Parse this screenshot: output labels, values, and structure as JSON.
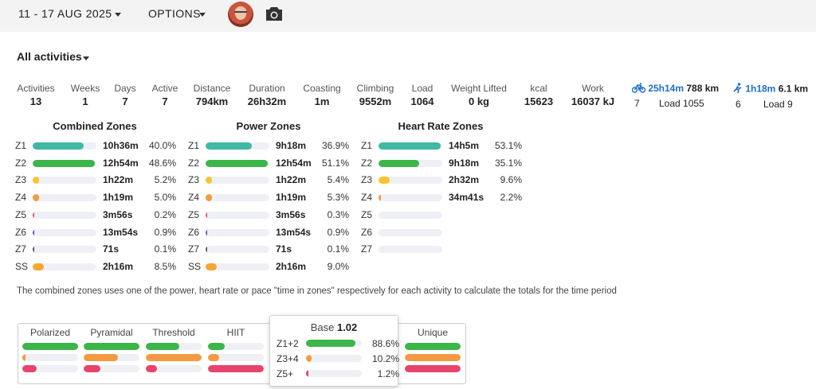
{
  "header": {
    "date_range": "11 - 17 AUG 2025",
    "options_label": "OPTIONS",
    "avatar_icon": "user-avatar",
    "camera_icon": "camera-icon"
  },
  "filter": {
    "label": "All activities"
  },
  "stats": [
    {
      "label": "Activities",
      "value": "13"
    },
    {
      "label": "Weeks",
      "value": "1"
    },
    {
      "label": "Days",
      "value": "7"
    },
    {
      "label": "Active",
      "value": "7"
    },
    {
      "label": "Distance",
      "value": "794km"
    },
    {
      "label": "Duration",
      "value": "26h32m"
    },
    {
      "label": "Coasting",
      "value": "1m"
    },
    {
      "label": "Climbing",
      "value": "9552m"
    },
    {
      "label": "Load",
      "value": "1064"
    },
    {
      "label": "Weight Lifted",
      "value": "0 kg"
    },
    {
      "label": "kcal",
      "value": "15623"
    },
    {
      "label": "Work",
      "value": "16037 kJ"
    }
  ],
  "sports": [
    {
      "icon": "bike-icon",
      "time": "25h14m",
      "distance": "788 km",
      "count": "7",
      "load": "Load 1055"
    },
    {
      "icon": "run-icon",
      "time": "1h18m",
      "distance": "6.1 km",
      "count": "6",
      "load": "Load 9"
    }
  ],
  "zones": {
    "colors": {
      "Z1": "#3fb8a4",
      "Z2": "#3cb54a",
      "Z3": "#f8c42e",
      "Z4": "#f59a43",
      "Z5": "#ef4f6b",
      "Z6": "#6a4fd6",
      "Z7": "#555555",
      "SS": "#f5a733"
    },
    "combined": {
      "title": "Combined Zones",
      "rows": [
        {
          "zone": "Z1",
          "time": "10h36m",
          "pct": "40.0%",
          "frac": 0.8
        },
        {
          "zone": "Z2",
          "time": "12h54m",
          "pct": "48.6%",
          "frac": 0.98
        },
        {
          "zone": "Z3",
          "time": "1h22m",
          "pct": "5.2%",
          "frac": 0.1
        },
        {
          "zone": "Z4",
          "time": "1h19m",
          "pct": "5.0%",
          "frac": 0.1
        },
        {
          "zone": "Z5",
          "time": "3m56s",
          "pct": "0.2%",
          "frac": 0.01
        },
        {
          "zone": "Z6",
          "time": "13m54s",
          "pct": "0.9%",
          "frac": 0.02
        },
        {
          "zone": "Z7",
          "time": "71s",
          "pct": "0.1%",
          "frac": 0.005
        },
        {
          "zone": "SS",
          "time": "2h16m",
          "pct": "8.5%",
          "frac": 0.17
        }
      ]
    },
    "power": {
      "title": "Power Zones",
      "rows": [
        {
          "zone": "Z1",
          "time": "9h18m",
          "pct": "36.9%",
          "frac": 0.72
        },
        {
          "zone": "Z2",
          "time": "12h54m",
          "pct": "51.1%",
          "frac": 0.98
        },
        {
          "zone": "Z3",
          "time": "1h22m",
          "pct": "5.4%",
          "frac": 0.1
        },
        {
          "zone": "Z4",
          "time": "1h19m",
          "pct": "5.3%",
          "frac": 0.1
        },
        {
          "zone": "Z5",
          "time": "3m56s",
          "pct": "0.3%",
          "frac": 0.01
        },
        {
          "zone": "Z6",
          "time": "13m54s",
          "pct": "0.9%",
          "frac": 0.02
        },
        {
          "zone": "Z7",
          "time": "71s",
          "pct": "0.1%",
          "frac": 0.005
        },
        {
          "zone": "SS",
          "time": "2h16m",
          "pct": "9.0%",
          "frac": 0.18
        }
      ]
    },
    "heart_rate": {
      "title": "Heart Rate Zones",
      "rows": [
        {
          "zone": "Z1",
          "time": "14h5m",
          "pct": "53.1%",
          "frac": 0.98
        },
        {
          "zone": "Z2",
          "time": "9h18m",
          "pct": "35.1%",
          "frac": 0.64
        },
        {
          "zone": "Z3",
          "time": "2h32m",
          "pct": "9.6%",
          "frac": 0.17
        },
        {
          "zone": "Z4",
          "time": "34m41s",
          "pct": "2.2%",
          "frac": 0.04
        },
        {
          "zone": "Z5",
          "time": "",
          "pct": "",
          "frac": 0
        },
        {
          "zone": "Z6",
          "time": "",
          "pct": "",
          "frac": 0
        },
        {
          "zone": "Z7",
          "time": "",
          "pct": "",
          "frac": 0
        }
      ]
    }
  },
  "note": "The combined zones uses one of the power, heart rate or pace \"time in zones\" respectively for each activity to calculate the totals for the time period",
  "distribution": {
    "columns": [
      {
        "label": "Polarized",
        "bars": [
          {
            "frac": 1.0,
            "color": "#3cb54a"
          },
          {
            "frac": 0.05,
            "color": "#f59a43"
          },
          {
            "frac": 0.25,
            "color": "#e8436f"
          }
        ]
      },
      {
        "label": "Pyramidal",
        "bars": [
          {
            "frac": 1.0,
            "color": "#3cb54a"
          },
          {
            "frac": 0.62,
            "color": "#f59a43"
          },
          {
            "frac": 0.3,
            "color": "#e8436f"
          }
        ]
      },
      {
        "label": "Threshold",
        "bars": [
          {
            "frac": 0.6,
            "color": "#3cb54a"
          },
          {
            "frac": 1.0,
            "color": "#f59a43"
          },
          {
            "frac": 0.2,
            "color": "#e8436f"
          }
        ]
      },
      {
        "label": "HIIT",
        "bars": [
          {
            "frac": 0.3,
            "color": "#3cb54a"
          },
          {
            "frac": 0.2,
            "color": "#f59a43"
          },
          {
            "frac": 1.0,
            "color": "#e8436f"
          }
        ]
      },
      {
        "label": "Unique",
        "bars": [
          {
            "frac": 1.0,
            "color": "#3cb54a"
          },
          {
            "frac": 1.0,
            "color": "#f59a43"
          },
          {
            "frac": 1.0,
            "color": "#e8436f"
          }
        ]
      }
    ],
    "popup": {
      "title": "Base",
      "score": "1.02",
      "rows": [
        {
          "label": "Z1+2",
          "pct": "88.6%",
          "frac": 0.886,
          "color": "#3cb54a"
        },
        {
          "label": "Z3+4",
          "pct": "10.2%",
          "frac": 0.102,
          "color": "#f59a43"
        },
        {
          "label": "Z5+",
          "pct": "1.2%",
          "frac": 0.012,
          "color": "#e8436f"
        }
      ]
    }
  }
}
